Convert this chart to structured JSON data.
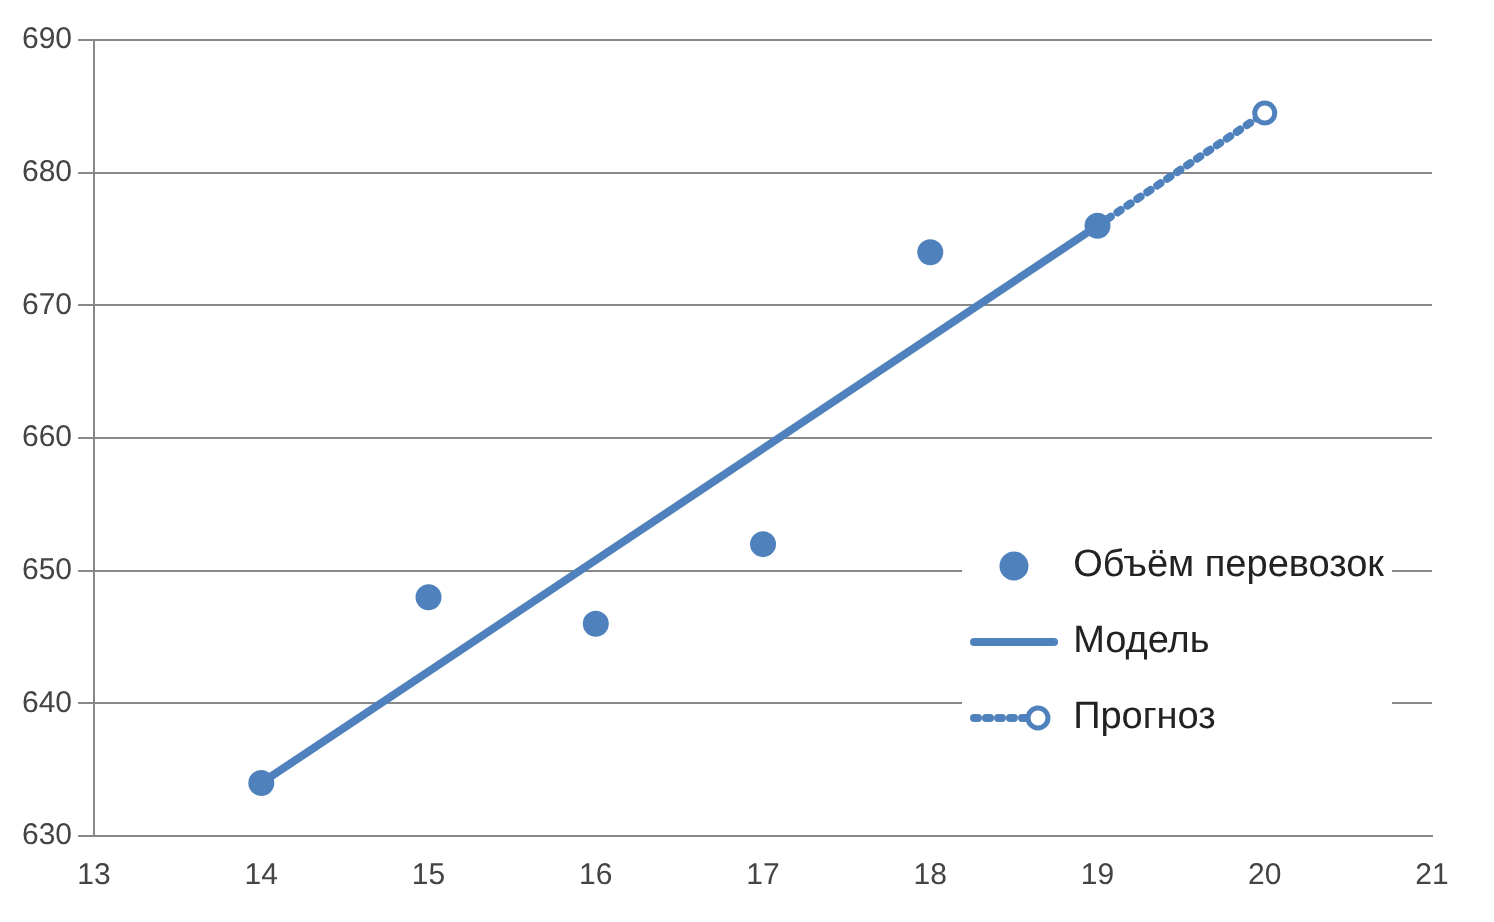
{
  "chart_data": {
    "type": "scatter",
    "xlim": [
      13,
      21
    ],
    "xticks": [
      13,
      14,
      15,
      16,
      17,
      18,
      19,
      20,
      21
    ],
    "ylim": [
      630,
      690
    ],
    "yticks": [
      630,
      640,
      650,
      660,
      670,
      680,
      690
    ],
    "grid": "y",
    "legend": "bottom right",
    "series": [
      {
        "name": "Объём перевозок",
        "color": "#4f81bd",
        "marker": "circle",
        "x": [
          14,
          15,
          16,
          17,
          18,
          19
        ],
        "values": [
          634,
          648,
          646,
          652,
          674,
          676
        ]
      },
      {
        "name": "Модель",
        "type": "line",
        "color": "#4f81bd",
        "marker": "none",
        "line_style": "solid",
        "x": [
          14,
          19
        ],
        "values": [
          634,
          676
        ]
      },
      {
        "name": "Прогноз",
        "type": "line",
        "color": "#4f81bd",
        "marker": "circle",
        "line_style": "dotted",
        "x": [
          19,
          20
        ],
        "values": [
          676,
          684.5
        ]
      }
    ]
  }
}
